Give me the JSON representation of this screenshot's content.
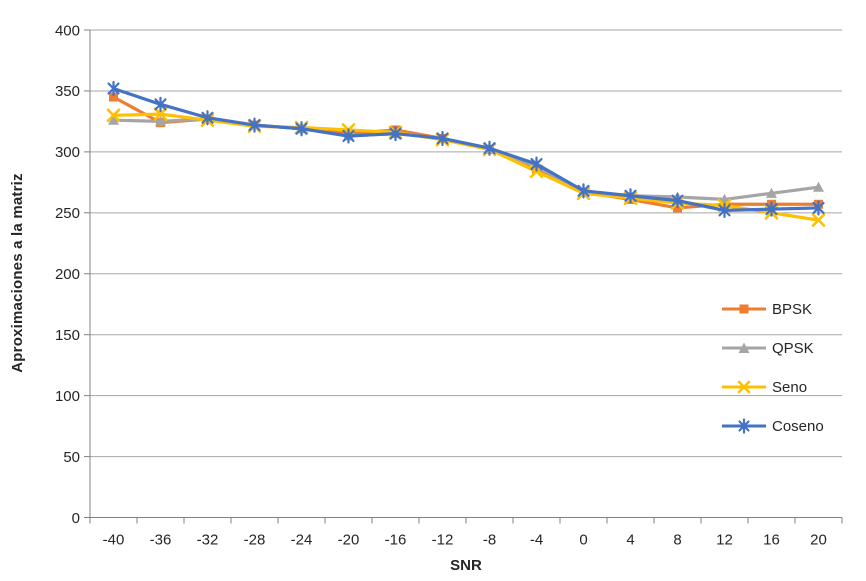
{
  "chart_data": {
    "type": "line",
    "title": "",
    "xlabel": "SNR",
    "ylabel": "Aproximaciones a la matriz",
    "categories": [
      -40,
      -36,
      -32,
      -28,
      -24,
      -20,
      -16,
      -12,
      -8,
      -4,
      0,
      4,
      8,
      12,
      16,
      20
    ],
    "yticks": [
      0,
      50,
      100,
      150,
      200,
      250,
      300,
      350,
      400
    ],
    "ylim": [
      0,
      400
    ],
    "grid": "horizontal",
    "legend_position": "right-inside",
    "series": [
      {
        "name": "BPSK",
        "color": "#ED7D31",
        "marker": "square",
        "values": [
          345,
          324,
          327,
          322,
          319,
          315,
          318,
          311,
          302,
          286,
          267,
          261,
          254,
          257,
          257,
          257
        ]
      },
      {
        "name": "QPSK",
        "color": "#A5A5A5",
        "marker": "triangle",
        "values": [
          326,
          325,
          327,
          322,
          319,
          313,
          315,
          311,
          303,
          288,
          267,
          264,
          263,
          261,
          266,
          271
        ]
      },
      {
        "name": "Seno",
        "color": "#FFC000",
        "marker": "x",
        "values": [
          330,
          331,
          326,
          321,
          320,
          318,
          316,
          310,
          302,
          284,
          266,
          262,
          258,
          256,
          250,
          244
        ]
      },
      {
        "name": "Coseno",
        "color": "#4472C4",
        "marker": "asterisk",
        "values": [
          352,
          339,
          328,
          322,
          319,
          313,
          315,
          311,
          303,
          290,
          268,
          264,
          260,
          252,
          253,
          254
        ]
      }
    ],
    "colors": {
      "grid": "#A6A6A6",
      "axis": "#808080",
      "tick_text": "#262626"
    }
  }
}
